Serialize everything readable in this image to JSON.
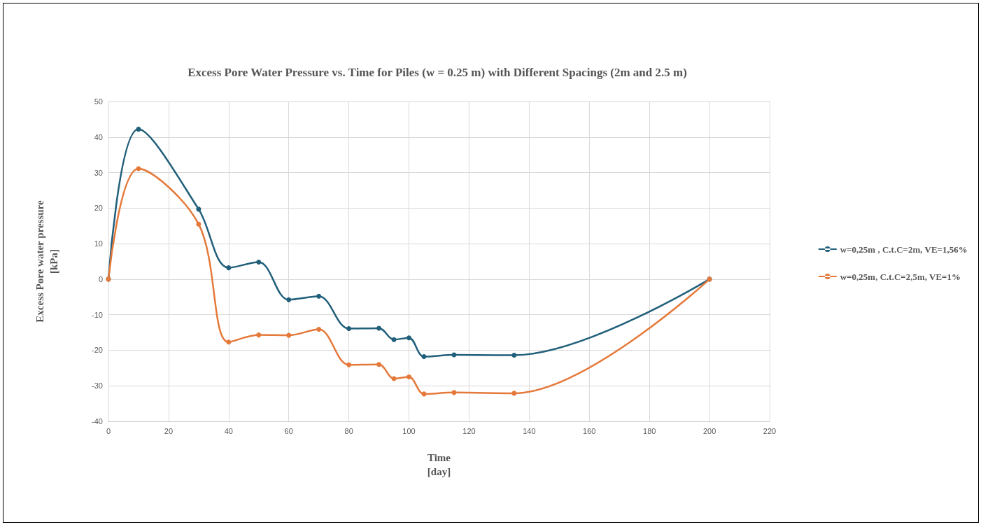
{
  "chart_data": {
    "type": "line",
    "title": "Excess Pore Water Pressure vs. Time for Piles (w = 0.25 m) with Different Spacings (2m and 2.5 m)",
    "xlabel": "Time\n[day]",
    "ylabel": "Excess Pore water pressure\n[kPa]",
    "series": [
      {
        "name": "w=0,25m , C.t.C=2m, VE=1,56%",
        "color": "#215f7a",
        "x": [
          0,
          10,
          30,
          40,
          50,
          60,
          70,
          80,
          90,
          95,
          100,
          105,
          115,
          135,
          200
        ],
        "values": [
          0,
          42.2,
          19.7,
          3.2,
          4.8,
          -5.8,
          -4.8,
          -13.9,
          -13.8,
          -17,
          -16.5,
          -21.8,
          -21.3,
          -21.4,
          0
        ]
      },
      {
        "name": "w=0,25m, C.t.C=2,5m, VE=1%",
        "color": "#e5793a",
        "x": [
          0,
          10,
          30,
          40,
          50,
          60,
          70,
          80,
          90,
          95,
          100,
          105,
          115,
          135,
          200
        ],
        "values": [
          0,
          31.1,
          15.5,
          -17.7,
          -15.7,
          -15.8,
          -14.1,
          -24.1,
          -24,
          -28,
          -27.5,
          -32.3,
          -31.9,
          -32.1,
          0
        ]
      }
    ],
    "xlim": [
      0,
      220
    ],
    "xticks": [
      0,
      20,
      40,
      60,
      80,
      100,
      120,
      140,
      160,
      180,
      200,
      220
    ],
    "ylim": [
      -40,
      50
    ],
    "yticks": [
      -40,
      -30,
      -20,
      -10,
      0,
      10,
      20,
      30,
      40,
      50
    ],
    "grid": true,
    "legend": "right",
    "marker": "circle",
    "line_style": "solid"
  }
}
